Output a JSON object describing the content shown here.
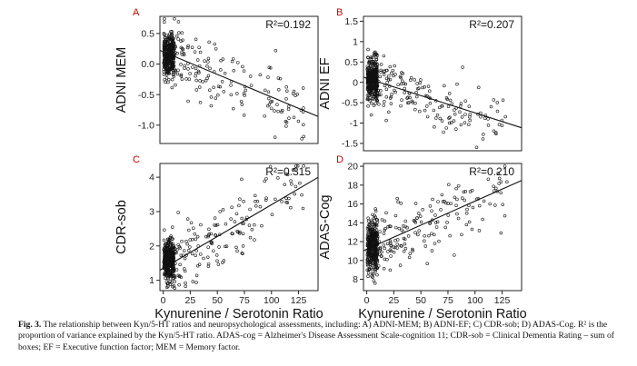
{
  "chart_data": [
    {
      "type": "scatter",
      "panel_label": "A",
      "r2_text": "R²=0.192",
      "xlabel": "Kynurenine / Serotonin Ratio",
      "ylabel": "ADNI MEM",
      "xlim": [
        -3,
        143
      ],
      "ylim": [
        -1.3,
        0.78
      ],
      "yticks": [
        -1.0,
        -0.5,
        0.0,
        0.5
      ],
      "ytick_labels": [
        "-1.0",
        "-0.5",
        "0.0",
        "0.5"
      ],
      "xticks": [],
      "xtick_labels": [],
      "trend": {
        "intercept": 0.2,
        "slope": -0.0074
      },
      "cluster": {
        "x_min": 0.5,
        "x_max": 10,
        "y_center": 0.15,
        "y_spread": 0.32,
        "n": 330
      },
      "spread": {
        "x_min": 8,
        "x_max": 130,
        "y_noise": 0.28,
        "n": 170
      },
      "seed": 11
    },
    {
      "type": "scatter",
      "panel_label": "B",
      "r2_text": "R²=0.207",
      "xlabel": "Kynurenine / Serotonin Ratio",
      "ylabel": "ADNI EF",
      "xlim": [
        -3,
        143
      ],
      "ylim": [
        -1.68,
        1.62
      ],
      "yticks": [
        -1.5,
        -1.0,
        -0.5,
        0.0,
        0.5,
        1.0,
        1.5
      ],
      "ytick_labels": [
        "-1.5",
        "-1",
        "-0.5",
        "0",
        "0.5",
        "1",
        "1.5"
      ],
      "xticks": [],
      "xtick_labels": [],
      "trend": {
        "intercept": 0.1,
        "slope": -0.0085
      },
      "cluster": {
        "x_min": 0.5,
        "x_max": 10,
        "y_center": 0.1,
        "y_spread": 0.45,
        "n": 330
      },
      "spread": {
        "x_min": 8,
        "x_max": 130,
        "y_noise": 0.3,
        "n": 170
      },
      "seed": 23
    },
    {
      "type": "scatter",
      "panel_label": "C",
      "r2_text": "R²=0.315",
      "xlabel": "Kynurenine / Serotonin Ratio",
      "ylabel": "CDR-sob",
      "xlim": [
        -3,
        143
      ],
      "ylim": [
        0.7,
        4.4
      ],
      "yticks": [
        1,
        2,
        3,
        4
      ],
      "ytick_labels": [
        "1",
        "2",
        "3",
        "4"
      ],
      "xticks": [
        0,
        25,
        50,
        75,
        100,
        125
      ],
      "xtick_labels": [
        "0",
        "25",
        "50",
        "75",
        "100",
        "125"
      ],
      "trend": {
        "intercept": 1.35,
        "slope": 0.0185
      },
      "cluster": {
        "x_min": 0.5,
        "x_max": 10,
        "y_center": 1.55,
        "y_spread": 0.55,
        "n": 330
      },
      "spread": {
        "x_min": 8,
        "x_max": 130,
        "y_noise": 0.45,
        "n": 170
      },
      "seed": 37
    },
    {
      "type": "scatter",
      "panel_label": "D",
      "r2_text": "R²=0.210",
      "xlabel": "Kynurenine / Serotonin Ratio",
      "ylabel": "ADAS-Cog",
      "xlim": [
        -3,
        143
      ],
      "ylim": [
        6.8,
        20.3
      ],
      "yticks": [
        8,
        10,
        12,
        14,
        16,
        18,
        20
      ],
      "ytick_labels": [
        "8",
        "10",
        "12",
        "14",
        "16",
        "18",
        "20"
      ],
      "xticks": [
        0,
        25,
        50,
        75,
        100,
        125
      ],
      "xtick_labels": [
        "0",
        "25",
        "50",
        "75",
        "100",
        "125"
      ],
      "trend": {
        "intercept": 11.2,
        "slope": 0.051
      },
      "cluster": {
        "x_min": 0.5,
        "x_max": 10,
        "y_center": 11.5,
        "y_spread": 2.5,
        "n": 330
      },
      "spread": {
        "x_min": 8,
        "x_max": 130,
        "y_noise": 1.8,
        "n": 170
      },
      "seed": 53
    }
  ],
  "caption": {
    "fig_label": "Fig. 3.",
    "text": "The relationship between Kyn/5-HT ratios and neuropsychological assessments, including: A) ADNI-MEM; B) ADNI-EF; C) CDR-sob; D) ADAS-Cog. R² is the proportion of variance explained by the Kyn/5-HT ratio. ADAS-cog = Alzheimer's Disease Assessment Scale-cognition 11; CDR-sob = Clinical Dementia Rating – sum of boxes; EF = Executive function factor; MEM = Memory factor."
  }
}
